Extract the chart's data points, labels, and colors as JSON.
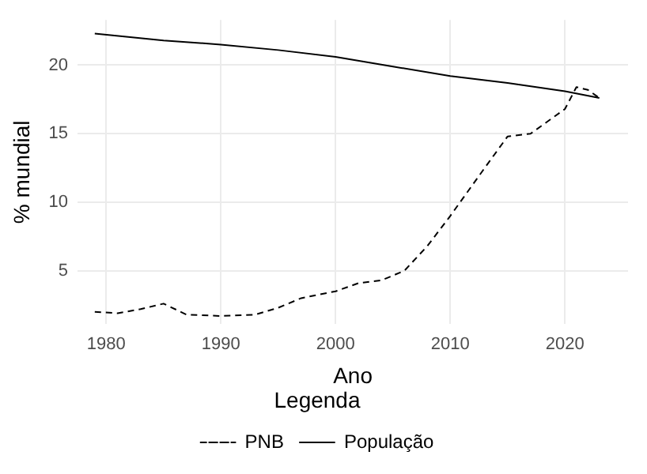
{
  "chart_data": {
    "type": "line",
    "xlabel": "Ano",
    "ylabel": "% mundial",
    "legend_title": "Legenda",
    "legend": "bottom",
    "grid": true,
    "marker": "none",
    "xlim": [
      1977.5,
      2025.5
    ],
    "xticks": [
      1980,
      1990,
      2000,
      2010,
      2020
    ],
    "ylim": [
      1.1,
      23.3
    ],
    "yticks": [
      5,
      10,
      15,
      20
    ],
    "series": [
      {
        "name": "PNB",
        "color": "#000000",
        "line_style": "dashed",
        "x": [
          1979,
          1981,
          1983,
          1985,
          1987,
          1990,
          1993,
          1995,
          1997,
          2000,
          2002,
          2004,
          2006,
          2008,
          2010,
          2013,
          2015,
          2017,
          2020,
          2021,
          2022,
          2023
        ],
        "values": [
          2.0,
          1.9,
          2.2,
          2.6,
          1.8,
          1.7,
          1.8,
          2.3,
          3.0,
          3.5,
          4.1,
          4.3,
          5.0,
          6.8,
          9.0,
          12.5,
          14.8,
          15.0,
          16.8,
          18.4,
          18.2,
          17.6
        ]
      },
      {
        "name": "População",
        "color": "#000000",
        "line_style": "solid",
        "x": [
          1979,
          1985,
          1990,
          1995,
          2000,
          2005,
          2010,
          2015,
          2020,
          2023
        ],
        "values": [
          22.3,
          21.8,
          21.5,
          21.1,
          20.6,
          19.9,
          19.2,
          18.7,
          18.1,
          17.6
        ]
      }
    ]
  }
}
